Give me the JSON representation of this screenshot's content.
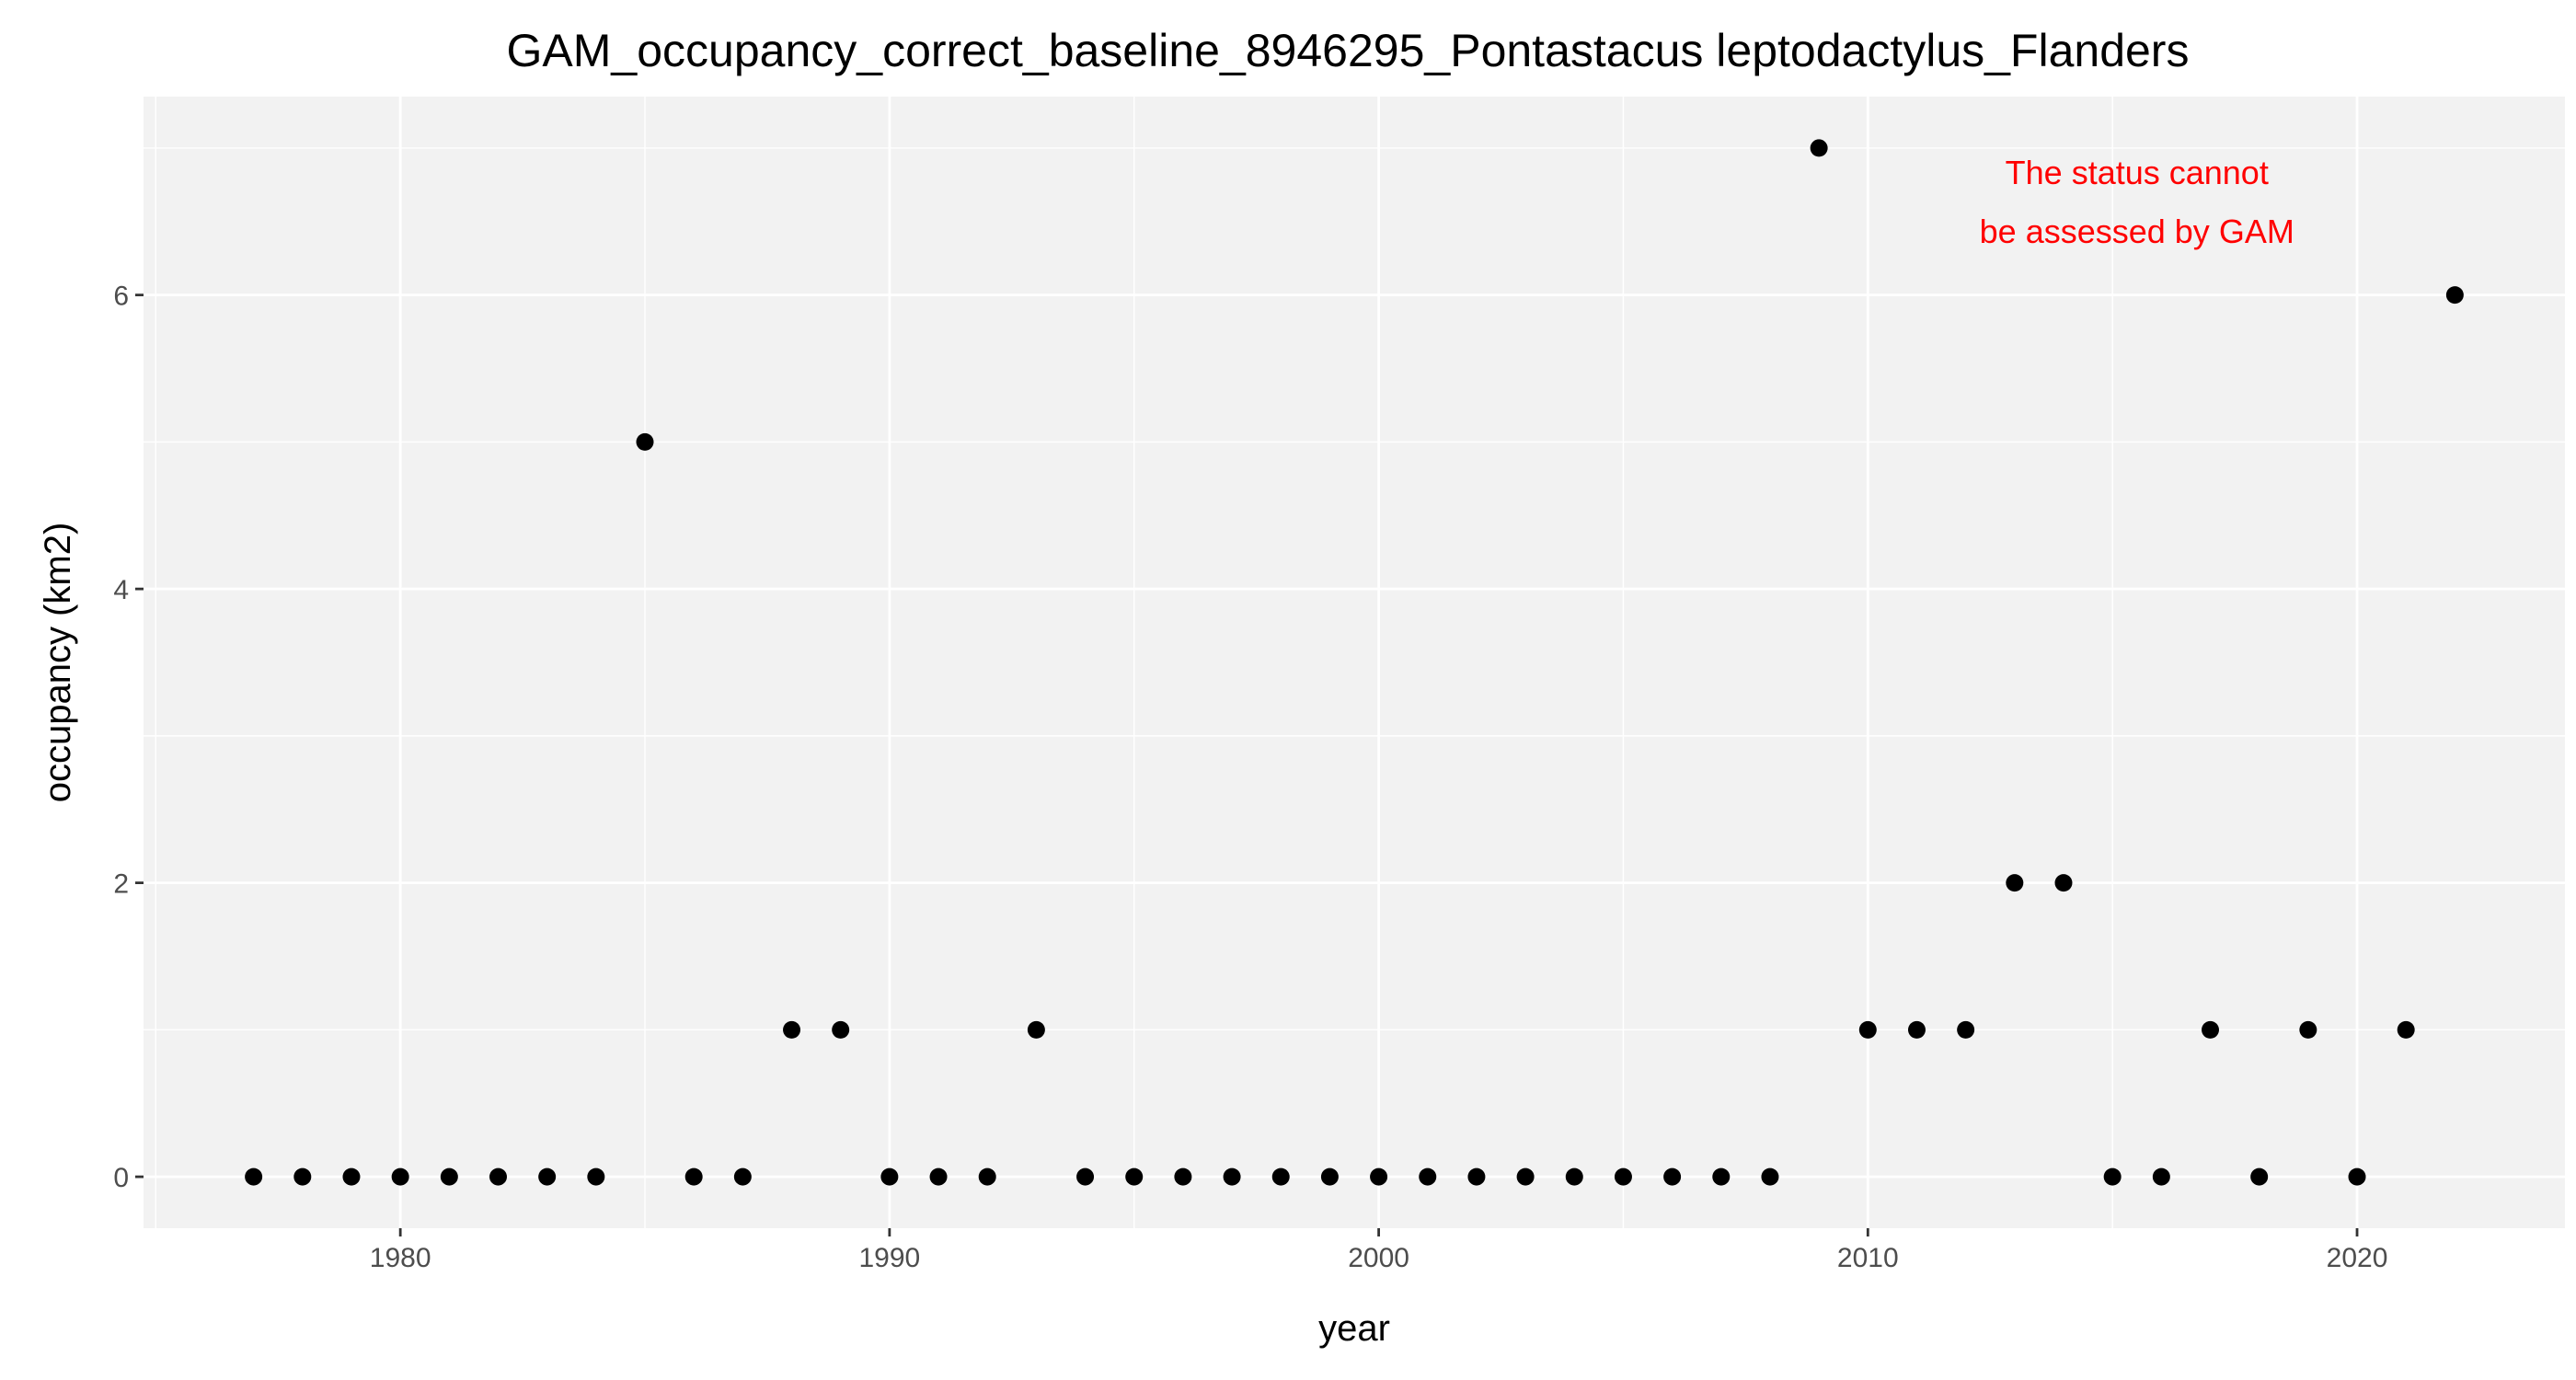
{
  "chart_data": {
    "type": "scatter",
    "title": "GAM_occupancy_correct_baseline_8946295_Pontastacus leptodactylus_Flanders",
    "xlabel": "year",
    "ylabel": "occupancy (km2)",
    "xlim": [
      1974.75,
      2024.25
    ],
    "ylim": [
      -0.35,
      7.35
    ],
    "x_ticks": [
      1980,
      1990,
      2000,
      2010,
      2020
    ],
    "x_tick_labels": [
      "1980",
      "1990",
      "2000",
      "2010",
      "2020"
    ],
    "y_ticks": [
      0,
      2,
      4,
      6
    ],
    "y_tick_labels": [
      "0",
      "2",
      "4",
      "6"
    ],
    "grid": true,
    "point_color": "#000000",
    "panel_color": "#f2f2f2",
    "series": [
      {
        "name": "occupancy",
        "x": [
          1977,
          1978,
          1979,
          1980,
          1981,
          1982,
          1983,
          1984,
          1985,
          1986,
          1987,
          1988,
          1989,
          1990,
          1991,
          1992,
          1993,
          1994,
          1995,
          1996,
          1997,
          1998,
          1999,
          2000,
          2001,
          2002,
          2003,
          2004,
          2005,
          2006,
          2007,
          2008,
          2009,
          2010,
          2011,
          2012,
          2013,
          2014,
          2015,
          2016,
          2017,
          2018,
          2019,
          2020,
          2021,
          2022
        ],
        "y": [
          0,
          0,
          0,
          0,
          0,
          0,
          0,
          0,
          5,
          0,
          0,
          1,
          1,
          0,
          0,
          0,
          1,
          0,
          0,
          0,
          0,
          0,
          0,
          0,
          0,
          0,
          0,
          0,
          0,
          0,
          0,
          0,
          7,
          1,
          1,
          1,
          2,
          2,
          0,
          0,
          1,
          0,
          1,
          0,
          1,
          6
        ]
      }
    ],
    "annotation": {
      "lines": [
        "The status cannot",
        "be assessed by GAM"
      ],
      "color": "#ff0000",
      "anchor_x": 2015.5,
      "anchor_y": 6.63
    }
  }
}
